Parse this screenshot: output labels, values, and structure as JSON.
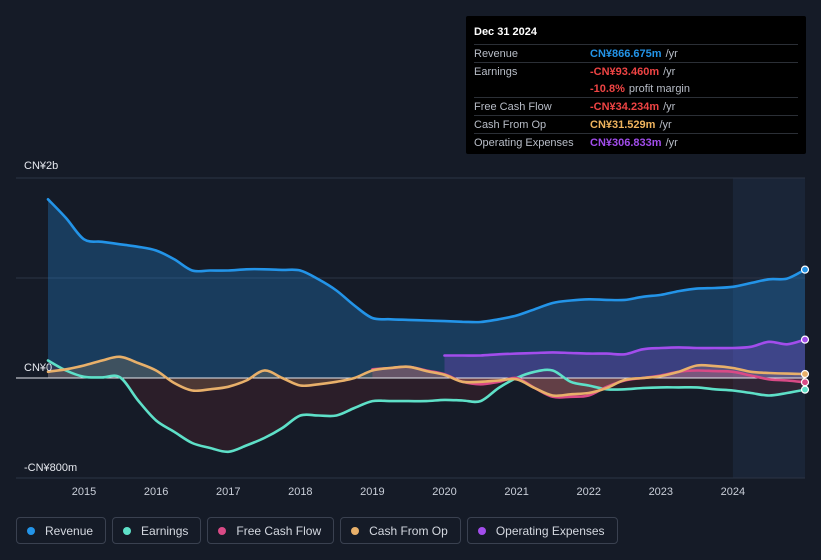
{
  "tooltip": {
    "date": "Dec 31 2024",
    "rows": [
      {
        "label": "Revenue",
        "value": "CN¥866.675m",
        "unit": "/yr",
        "color": "#2394e8"
      },
      {
        "label": "Earnings",
        "value": "-CN¥93.460m",
        "unit": "/yr",
        "color": "#ef4444"
      },
      {
        "label": "",
        "value": "-10.8%",
        "unit": "profit margin",
        "color": "#ef4444"
      },
      {
        "label": "Free Cash Flow",
        "value": "-CN¥34.234m",
        "unit": "/yr",
        "color": "#ef4444"
      },
      {
        "label": "Cash From Op",
        "value": "CN¥31.529m",
        "unit": "/yr",
        "color": "#f0b45e"
      },
      {
        "label": "Operating Expenses",
        "value": "CN¥306.833m",
        "unit": "/yr",
        "color": "#a24dec"
      }
    ]
  },
  "legend": [
    {
      "label": "Revenue",
      "color": "#2394e8"
    },
    {
      "label": "Earnings",
      "color": "#5ee0c8"
    },
    {
      "label": "Free Cash Flow",
      "color": "#d94a86"
    },
    {
      "label": "Cash From Op",
      "color": "#e8b06a"
    },
    {
      "label": "Operating Expenses",
      "color": "#a24dec"
    }
  ],
  "chart_data": {
    "type": "line",
    "title": "",
    "xlabel": "",
    "ylabel": "",
    "ylim": [
      -800,
      1600
    ],
    "y_axis_labels": [
      {
        "value": 1600,
        "label": "CN¥2b"
      },
      {
        "value": 0,
        "label": "CN¥0"
      },
      {
        "value": -800,
        "label": "-CN¥800m"
      }
    ],
    "x_ticks": [
      {
        "value": 2015,
        "label": "2015"
      },
      {
        "value": 2016,
        "label": "2016"
      },
      {
        "value": 2017,
        "label": "2017"
      },
      {
        "value": 2018,
        "label": "2018"
      },
      {
        "value": 2019,
        "label": "2019"
      },
      {
        "value": 2020,
        "label": "2020"
      },
      {
        "value": 2021,
        "label": "2021"
      },
      {
        "value": 2022,
        "label": "2022"
      },
      {
        "value": 2023,
        "label": "2023"
      },
      {
        "value": 2024,
        "label": "2024"
      }
    ],
    "xlim": [
      2014.5,
      2025.0
    ],
    "highlight_start": 2024.0,
    "series": [
      {
        "name": "Revenue",
        "color": "#2394e8",
        "fill": "area",
        "x": [
          2014.5,
          2014.75,
          2015.0,
          2015.25,
          2015.5,
          2015.75,
          2016.0,
          2016.25,
          2016.5,
          2016.75,
          2017.0,
          2017.25,
          2017.5,
          2017.75,
          2018.0,
          2018.25,
          2018.5,
          2018.75,
          2019.0,
          2019.25,
          2019.5,
          2019.75,
          2020.0,
          2020.25,
          2020.5,
          2020.75,
          2021.0,
          2021.25,
          2021.5,
          2021.75,
          2022.0,
          2022.25,
          2022.5,
          2022.75,
          2023.0,
          2023.25,
          2023.5,
          2023.75,
          2024.0,
          2024.25,
          2024.5,
          2024.75,
          2025.0
        ],
        "values": [
          1430,
          1280,
          1110,
          1090,
          1070,
          1050,
          1020,
          950,
          860,
          860,
          860,
          870,
          870,
          865,
          860,
          790,
          700,
          580,
          480,
          470,
          465,
          460,
          455,
          450,
          448,
          470,
          500,
          550,
          600,
          620,
          630,
          625,
          625,
          650,
          665,
          695,
          715,
          720,
          730,
          760,
          790,
          795,
          867
        ]
      },
      {
        "name": "Operating Expenses",
        "color": "#a24dec",
        "fill": "area",
        "x": [
          2020.0,
          2020.25,
          2020.5,
          2020.75,
          2021.0,
          2021.25,
          2021.5,
          2021.75,
          2022.0,
          2022.25,
          2022.5,
          2022.75,
          2023.0,
          2023.25,
          2023.5,
          2023.75,
          2024.0,
          2024.25,
          2024.5,
          2024.75,
          2025.0
        ],
        "values": [
          180,
          180,
          180,
          190,
          195,
          200,
          205,
          200,
          195,
          195,
          190,
          230,
          240,
          245,
          240,
          240,
          240,
          250,
          290,
          270,
          307
        ]
      },
      {
        "name": "Earnings",
        "color": "#5ee0c8",
        "fill": "area",
        "x": [
          2014.5,
          2014.75,
          2015.0,
          2015.25,
          2015.5,
          2015.75,
          2016.0,
          2016.25,
          2016.5,
          2016.75,
          2017.0,
          2017.25,
          2017.5,
          2017.75,
          2018.0,
          2018.25,
          2018.5,
          2018.75,
          2019.0,
          2019.25,
          2019.5,
          2019.75,
          2020.0,
          2020.25,
          2020.5,
          2020.75,
          2021.0,
          2021.25,
          2021.5,
          2021.75,
          2022.0,
          2022.25,
          2022.5,
          2022.75,
          2023.0,
          2023.25,
          2023.5,
          2023.75,
          2024.0,
          2024.25,
          2024.5,
          2024.75,
          2025.0
        ],
        "values": [
          140,
          60,
          10,
          5,
          5,
          -180,
          -340,
          -430,
          -520,
          -560,
          -590,
          -540,
          -480,
          -400,
          -300,
          -300,
          -300,
          -240,
          -185,
          -185,
          -185,
          -185,
          -175,
          -180,
          -185,
          -80,
          0,
          50,
          60,
          -30,
          -60,
          -90,
          -90,
          -80,
          -75,
          -75,
          -75,
          -90,
          -100,
          -120,
          -140,
          -120,
          -93
        ]
      },
      {
        "name": "Free Cash Flow",
        "color": "#d94a86",
        "fill": "area",
        "x": [
          2019.0,
          2019.25,
          2019.5,
          2019.75,
          2020.0,
          2020.25,
          2020.5,
          2020.75,
          2021.0,
          2021.25,
          2021.5,
          2021.75,
          2022.0,
          2022.25,
          2022.5,
          2022.75,
          2023.0,
          2023.25,
          2023.5,
          2023.75,
          2024.0,
          2024.25,
          2024.5,
          2024.75,
          2025.0
        ],
        "values": [
          70,
          80,
          90,
          60,
          30,
          -30,
          -50,
          -30,
          0,
          -80,
          -150,
          -150,
          -140,
          -70,
          -20,
          0,
          20,
          50,
          60,
          55,
          50,
          20,
          -10,
          -20,
          -34
        ]
      },
      {
        "name": "Cash From Op",
        "color": "#e8b06a",
        "fill": "area",
        "x": [
          2014.5,
          2014.75,
          2015.0,
          2015.25,
          2015.5,
          2015.75,
          2016.0,
          2016.25,
          2016.5,
          2016.75,
          2017.0,
          2017.25,
          2017.5,
          2017.75,
          2018.0,
          2018.25,
          2018.5,
          2018.75,
          2019.0,
          2019.25,
          2019.5,
          2019.75,
          2020.0,
          2020.25,
          2020.5,
          2020.75,
          2021.0,
          2021.25,
          2021.5,
          2021.75,
          2022.0,
          2022.25,
          2022.5,
          2022.75,
          2023.0,
          2023.25,
          2023.5,
          2023.75,
          2024.0,
          2024.25,
          2024.5,
          2024.75,
          2025.0
        ],
        "values": [
          50,
          70,
          100,
          140,
          170,
          120,
          60,
          -40,
          -100,
          -90,
          -70,
          -20,
          60,
          0,
          -60,
          -50,
          -30,
          0,
          60,
          80,
          90,
          55,
          25,
          -30,
          -30,
          -20,
          -10,
          -80,
          -140,
          -130,
          -120,
          -80,
          -15,
          0,
          15,
          50,
          100,
          95,
          80,
          50,
          40,
          35,
          32
        ]
      }
    ]
  }
}
